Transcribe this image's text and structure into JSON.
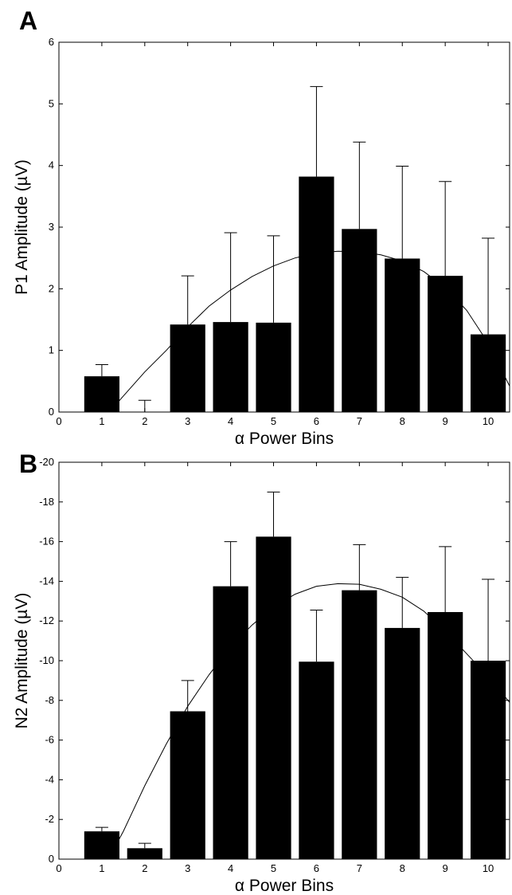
{
  "chart_data": [
    {
      "type": "bar",
      "panel_label": "A",
      "xlabel": "α Power Bins",
      "ylabel": "P1 Amplitude (µV)",
      "xlim": [
        0,
        10.5
      ],
      "ylim": [
        0,
        6
      ],
      "x_ticks": [
        "0",
        "1",
        "2",
        "3",
        "4",
        "5",
        "6",
        "7",
        "8",
        "9",
        "10"
      ],
      "y_ticks": [
        "0",
        "1",
        "2",
        "3",
        "4",
        "5",
        "6"
      ],
      "categories": [
        "1",
        "2",
        "3",
        "4",
        "5",
        "6",
        "7",
        "8",
        "9",
        "10"
      ],
      "values": [
        0.58,
        0.0,
        1.42,
        1.46,
        1.45,
        3.82,
        2.97,
        2.49,
        2.21,
        1.26
      ],
      "error_upper": [
        0.77,
        0.19,
        2.21,
        2.91,
        2.86,
        5.28,
        4.38,
        3.99,
        3.74,
        2.82
      ],
      "fit_curve": {
        "x": [
          1.3,
          1.5,
          2,
          2.5,
          3,
          3.5,
          4,
          4.5,
          5,
          5.5,
          6,
          6.5,
          7,
          7.5,
          8,
          8.5,
          9,
          9.5,
          10,
          10.5
        ],
        "y": [
          0.1,
          0.26,
          0.65,
          1.0,
          1.38,
          1.72,
          1.98,
          2.2,
          2.37,
          2.5,
          2.58,
          2.61,
          2.6,
          2.55,
          2.45,
          2.28,
          2.02,
          1.65,
          1.12,
          0.42
        ]
      },
      "bar_color": "#000000",
      "grid": false
    },
    {
      "type": "bar",
      "panel_label": "B",
      "xlabel": "α Power Bins",
      "ylabel": "N2 Amplitude (µV)",
      "xlim": [
        0,
        10.5
      ],
      "ylim": [
        0,
        -20
      ],
      "y_reversed": true,
      "x_ticks": [
        "0",
        "1",
        "2",
        "3",
        "4",
        "5",
        "6",
        "7",
        "8",
        "9",
        "10"
      ],
      "y_ticks": [
        "0",
        "-2",
        "-4",
        "-6",
        "-8",
        "-10",
        "-12",
        "-14",
        "-16",
        "-18",
        "-20"
      ],
      "categories": [
        "1",
        "2",
        "3",
        "4",
        "5",
        "6",
        "7",
        "8",
        "9",
        "10"
      ],
      "values": [
        -1.4,
        -0.55,
        -7.45,
        -13.75,
        -16.25,
        -9.95,
        -13.55,
        -11.65,
        -12.45,
        -10.0
      ],
      "error_upper": [
        -1.6,
        -0.8,
        -9.0,
        -16.0,
        -18.5,
        -12.55,
        -15.85,
        -14.2,
        -15.75,
        -14.1
      ],
      "fit_curve": {
        "x": [
          1.2,
          1.5,
          2,
          2.5,
          3,
          3.5,
          4,
          4.5,
          5,
          5.5,
          6,
          6.5,
          7,
          7.5,
          8,
          8.5,
          9,
          9.5,
          10,
          10.5
        ],
        "y": [
          -0.2,
          -1.4,
          -3.7,
          -5.8,
          -7.7,
          -9.3,
          -10.7,
          -11.8,
          -12.7,
          -13.35,
          -13.75,
          -13.88,
          -13.85,
          -13.6,
          -13.2,
          -12.5,
          -11.5,
          -10.35,
          -9.2,
          -7.9
        ]
      },
      "bar_color": "#000000",
      "grid": false
    }
  ]
}
